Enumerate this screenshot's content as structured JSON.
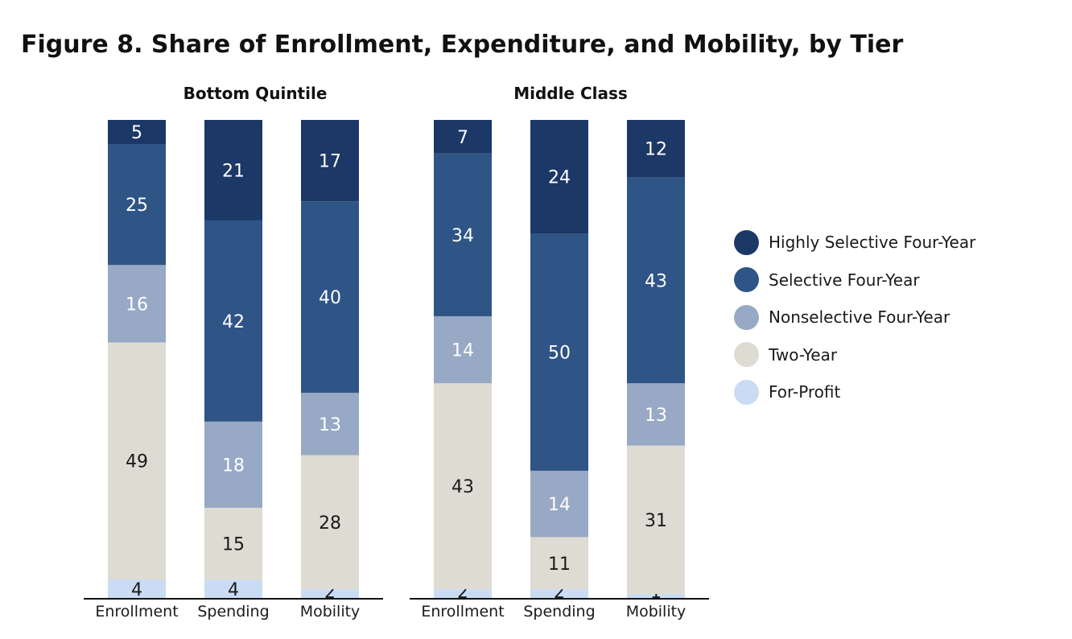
{
  "title": "Figure 8. Share of Enrollment, Expenditure, and Mobility, by Tier",
  "colors": {
    "Highly Selective Four-Year": "#1b3867",
    "Selective Four-Year": "#2f5486",
    "Nonselective Four-Year": "#97a9c4",
    "Two-Year": "#dedbd3",
    "For-Profit": "#c9dcf3",
    "label_light": "#ffffff",
    "label_dark": "#1a1a1a",
    "axis": "#111111"
  },
  "chart_data": [
    {
      "type": "bar",
      "stacked": true,
      "title": "Bottom Quintile",
      "categories": [
        "Enrollment",
        "Spending",
        "Mobility"
      ],
      "ylim": [
        0,
        100
      ],
      "series": [
        {
          "name": "For-Profit",
          "values": [
            4,
            4,
            2
          ]
        },
        {
          "name": "Two-Year",
          "values": [
            49,
            15,
            28
          ]
        },
        {
          "name": "Nonselective Four-Year",
          "values": [
            16,
            18,
            13
          ]
        },
        {
          "name": "Selective Four-Year",
          "values": [
            25,
            42,
            40
          ]
        },
        {
          "name": "Highly Selective Four-Year",
          "values": [
            5,
            21,
            17
          ]
        }
      ]
    },
    {
      "type": "bar",
      "stacked": true,
      "title": "Middle Class",
      "categories": [
        "Enrollment",
        "Spending",
        "Mobility"
      ],
      "ylim": [
        0,
        100
      ],
      "series": [
        {
          "name": "For-Profit",
          "values": [
            2,
            2,
            1
          ]
        },
        {
          "name": "Two-Year",
          "values": [
            43,
            11,
            31
          ]
        },
        {
          "name": "Nonselective Four-Year",
          "values": [
            14,
            14,
            13
          ]
        },
        {
          "name": "Selective Four-Year",
          "values": [
            34,
            50,
            43
          ]
        },
        {
          "name": "Highly Selective Four-Year",
          "values": [
            7,
            24,
            12
          ]
        }
      ]
    }
  ],
  "legend": {
    "position": "right",
    "items": [
      "Highly Selective Four-Year",
      "Selective Four-Year",
      "Nonselective Four-Year",
      "Two-Year",
      "For-Profit"
    ]
  }
}
